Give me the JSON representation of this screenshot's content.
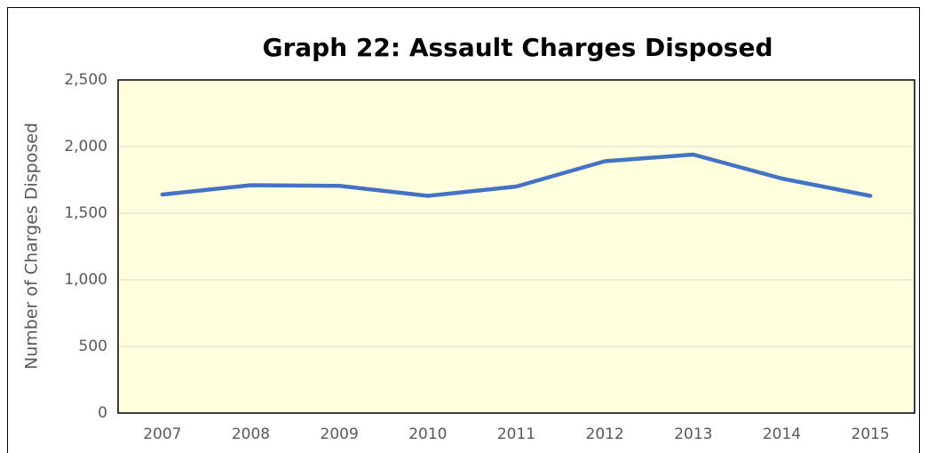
{
  "chart_data": {
    "type": "line",
    "title": "Graph 22: Assault Charges Disposed",
    "y_label": "Number of Charges Disposed",
    "categories": [
      "2007",
      "2008",
      "2009",
      "2010",
      "2011",
      "2012",
      "2013",
      "2014",
      "2015"
    ],
    "series": [
      {
        "name": "Assault Charges Disposed",
        "color": "#4472c4",
        "values": [
          1640,
          1710,
          1705,
          1630,
          1700,
          1890,
          1940,
          1760,
          1630
        ]
      }
    ],
    "ylim": [
      0,
      2500
    ],
    "yticks": [
      0,
      500,
      {
        "value": 1000,
        "label": "1,000"
      },
      {
        "value": 1500,
        "label": "1,500"
      },
      {
        "value": 2000,
        "label": "2,000"
      },
      {
        "value": 2500,
        "label": "2,500"
      }
    ],
    "grid": true
  }
}
